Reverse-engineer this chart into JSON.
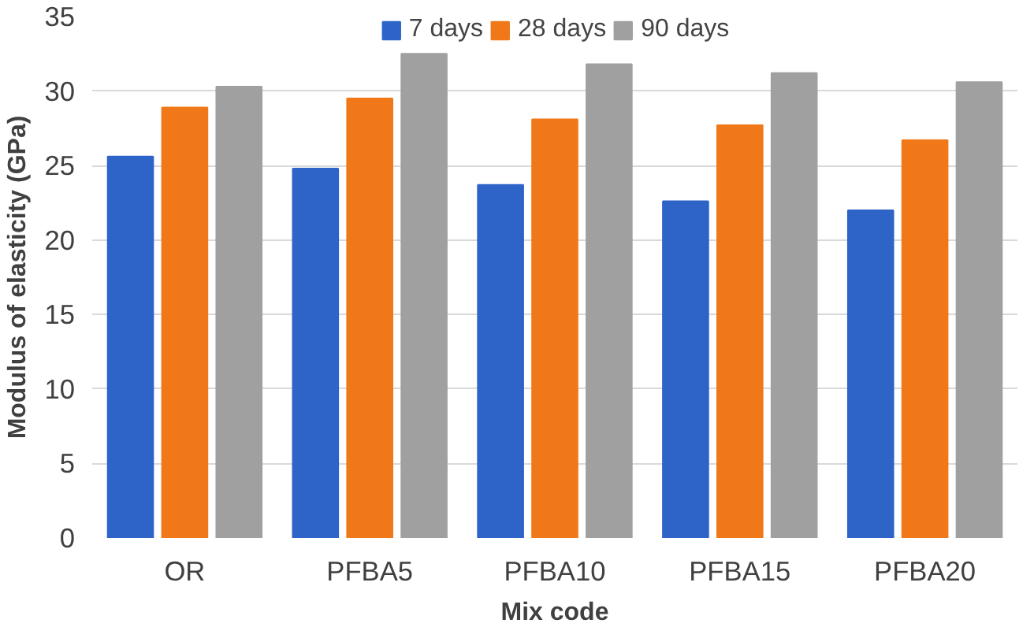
{
  "chart_data": {
    "type": "bar",
    "xlabel": "Mix code",
    "ylabel": "Modulus of elasticity (GPa)",
    "categories": [
      "OR",
      "PFBA5",
      "PFBA10",
      "PFBA15",
      "PFBA20"
    ],
    "series": [
      {
        "name": "7 days",
        "color": "#2e64c8",
        "values": [
          25.6,
          24.8,
          23.7,
          22.6,
          22.0
        ]
      },
      {
        "name": "28 days",
        "color": "#f07818",
        "values": [
          28.9,
          29.5,
          28.1,
          27.7,
          26.7
        ]
      },
      {
        "name": "90 days",
        "color": "#a0a0a0",
        "values": [
          30.3,
          32.5,
          31.8,
          31.2,
          30.6
        ]
      }
    ],
    "ylim": [
      0,
      35
    ],
    "yticks": [
      0,
      5,
      10,
      15,
      20,
      25,
      30,
      35
    ],
    "grid": "y",
    "legend": "top"
  }
}
